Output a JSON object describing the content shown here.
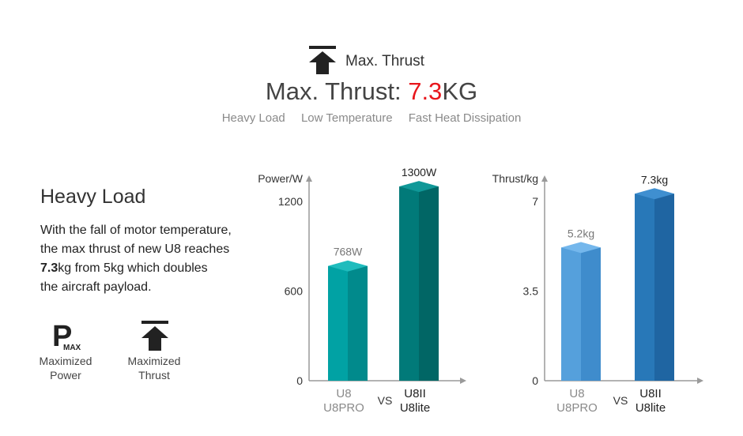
{
  "header": {
    "icon": "up-arrow-bar-icon",
    "label": "Max. Thrust",
    "title_prefix": "Max. Thrust: ",
    "title_value": "7.3",
    "title_unit": "KG",
    "tags": [
      "Heavy Load",
      "Low Temperature",
      "Fast Heat Dissipation"
    ],
    "accent_color": "#e8161c"
  },
  "section": {
    "heading": "Heavy Load",
    "lines": [
      {
        "text": "With the fall of motor temperature,"
      },
      {
        "text": "the max thrust of new U8 reaches"
      },
      {
        "bold": "7.3",
        "text": "kg from 5kg which doubles"
      },
      {
        "text": "the aircraft payload."
      }
    ]
  },
  "features": [
    {
      "icon": "p-max-icon",
      "icon_letter": "P",
      "icon_sub": "MAX",
      "line1": "Maximized",
      "line2": "Power"
    },
    {
      "icon": "up-arrow-bar-icon",
      "line1": "Maximized",
      "line2": "Thrust"
    }
  ],
  "chart_data": [
    {
      "type": "bar",
      "ylabel": "Power/W",
      "yticks": [
        0,
        600,
        1200
      ],
      "ylim": [
        0,
        1300
      ],
      "vs_label": "VS",
      "categories": [
        [
          "U8",
          "U8PRO"
        ],
        [
          "U8II",
          "U8lite"
        ]
      ],
      "values": [
        768,
        1300
      ],
      "value_labels": [
        "768W",
        "1300W"
      ],
      "colors": [
        {
          "front": "#01a2a4",
          "side": "#018a8c",
          "top": "#1fbcbd",
          "label": "#777777"
        },
        {
          "front": "#017a79",
          "side": "#016665",
          "top": "#109898",
          "label": "#222222"
        }
      ],
      "category_label_colors": [
        "#8a8a8a",
        "#222222"
      ]
    },
    {
      "type": "bar",
      "ylabel": "Thrust/kg",
      "yticks": [
        0,
        3.5,
        7
      ],
      "ylim": [
        0,
        7.7
      ],
      "vs_label": "VS",
      "categories": [
        [
          "U8",
          "U8PRO"
        ],
        [
          "U8II",
          "U8lite"
        ]
      ],
      "values": [
        5.2,
        7.3
      ],
      "value_labels": [
        "5.2kg",
        "7.3kg"
      ],
      "colors": [
        {
          "front": "#55a0dc",
          "side": "#3f8ccc",
          "top": "#74b7ec",
          "label": "#777777"
        },
        {
          "front": "#2878b8",
          "side": "#1f65a2",
          "top": "#3f8fd0",
          "label": "#222222"
        }
      ],
      "category_label_colors": [
        "#8a8a8a",
        "#222222"
      ]
    }
  ]
}
